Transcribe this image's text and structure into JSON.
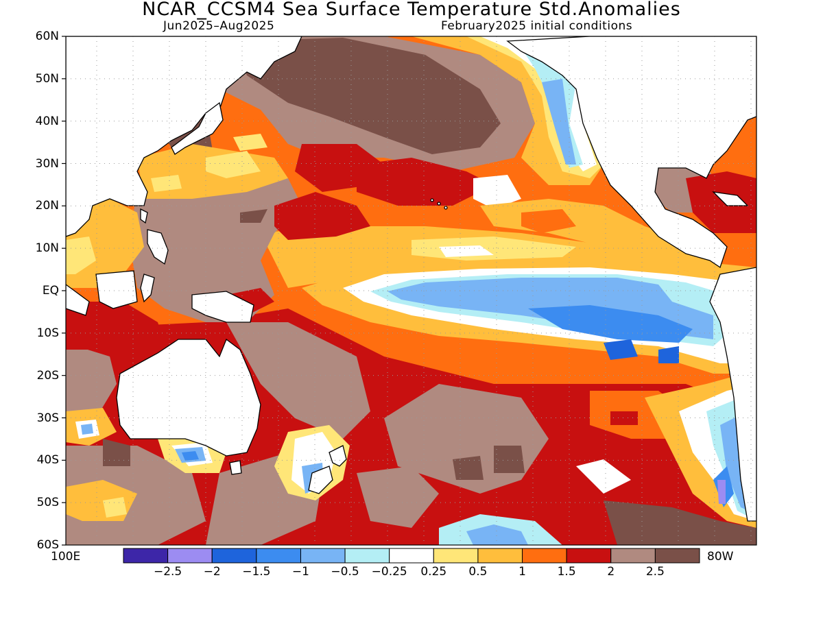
{
  "title": "NCAR_CCSM4 Sea Surface Temperature Std.Anomalies",
  "subtitle_left": "Jun2025–Aug2025",
  "subtitle_right": "February2025 initial conditions",
  "lat_labels": [
    "60N",
    "50N",
    "40N",
    "30N",
    "20N",
    "10N",
    "EQ",
    "10S",
    "20S",
    "30S",
    "40S",
    "50S",
    "60S"
  ],
  "lon_label_left": "100E",
  "lon_label_right": "80W",
  "colorbar": {
    "colors": [
      "#3d26a8",
      "#9c8cf2",
      "#1e64dc",
      "#3c8cf0",
      "#78b4f5",
      "#b4eef5",
      "#ffffff",
      "#ffe678",
      "#ffbe3c",
      "#ff6e10",
      "#c81010",
      "#b08a80",
      "#7a5048"
    ],
    "labels": [
      "−2.5",
      "−2",
      "−1.5",
      "−1",
      "−0.5",
      "−0.25",
      "0.25",
      "0.5",
      "1",
      "1.5",
      "2",
      "2.5"
    ]
  },
  "palette": {
    "land": "#ffffff",
    "coast": "#000000",
    "grid": "#9a9a9a"
  }
}
